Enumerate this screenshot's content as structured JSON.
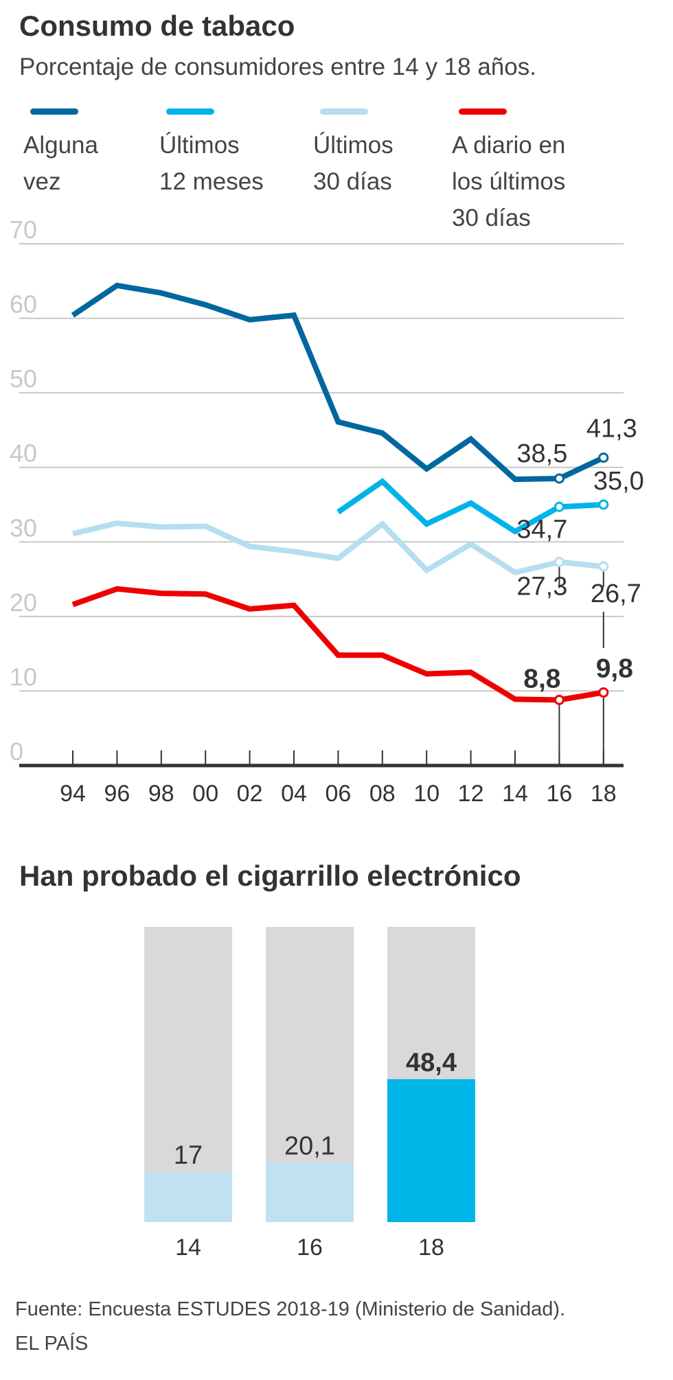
{
  "chart_data": [
    {
      "type": "line",
      "title": "Consumo de tabaco",
      "subtitle": "Porcentaje de consumidores entre 14 y 18 años.",
      "xlabel": "",
      "ylabel": "",
      "ylim": [
        0,
        70
      ],
      "yticks": [
        "0",
        "10",
        "20",
        "30",
        "40",
        "50",
        "60",
        "70"
      ],
      "x": [
        "94",
        "96",
        "98",
        "00",
        "02",
        "04",
        "06",
        "08",
        "10",
        "12",
        "14",
        "16",
        "18"
      ],
      "legend_position": "top",
      "series": [
        {
          "name": "Alguna vez",
          "color": "#00679f",
          "values": [
            60.4,
            64.4,
            63.4,
            61.8,
            59.8,
            60.4,
            46.1,
            44.6,
            39.8,
            43.8,
            38.4,
            38.5,
            41.3
          ],
          "annotations": [
            {
              "x": "16",
              "label": "38,5",
              "bold": false
            },
            {
              "x": "18",
              "label": "41,3",
              "bold": false
            }
          ]
        },
        {
          "name": "Últimos 12 meses",
          "color": "#00b3e8",
          "values": [
            null,
            null,
            null,
            null,
            null,
            null,
            34.0,
            38.1,
            32.4,
            35.2,
            31.4,
            34.7,
            35.0
          ],
          "annotations": [
            {
              "x": "16",
              "label": "34,7",
              "bold": false
            },
            {
              "x": "18",
              "label": "35,0",
              "bold": false
            }
          ]
        },
        {
          "name": "Últimos 30 días",
          "color": "#b5def0",
          "values": [
            31.1,
            32.5,
            32.0,
            32.1,
            29.4,
            28.7,
            27.8,
            32.4,
            26.2,
            29.7,
            25.9,
            27.3,
            26.7
          ],
          "annotations": [
            {
              "x": "16",
              "label": "27,3",
              "bold": false
            },
            {
              "x": "18",
              "label": "26,7",
              "bold": false
            }
          ]
        },
        {
          "name": "A diario en los últimos 30 días",
          "color": "#ee0000",
          "values": [
            21.6,
            23.7,
            23.1,
            23.0,
            21.0,
            21.5,
            14.8,
            14.8,
            12.3,
            12.5,
            8.9,
            8.8,
            9.8
          ],
          "annotations": [
            {
              "x": "16",
              "label": "8,8",
              "bold": true
            },
            {
              "x": "18",
              "label": "9,8",
              "bold": true
            }
          ]
        }
      ]
    },
    {
      "type": "bar",
      "title": "Han probado el cigarrillo electrónico",
      "categories": [
        "14",
        "16",
        "18"
      ],
      "values": [
        17,
        20.1,
        48.4
      ],
      "labels": [
        "17",
        "20,1",
        "48,4"
      ],
      "highlight": [
        false,
        false,
        true
      ],
      "ylim": [
        0,
        100
      ],
      "colors": {
        "background": "#d9d9d9",
        "normal": "#c0e1f0",
        "highlight": "#00b5e8"
      }
    }
  ],
  "legend": [
    {
      "label": "Alguna\nvez",
      "color": "#00679f"
    },
    {
      "label": "Últimos\n12 meses",
      "color": "#00b3e8"
    },
    {
      "label": "Últimos\n30 días",
      "color": "#b5def0"
    },
    {
      "label": "A diario en\nlos últimos\n30 días",
      "color": "#ee0000"
    }
  ],
  "source": {
    "line1": "Fuente: Encuesta ESTUDES 2018-19 (Ministerio de Sanidad).",
    "line2": "EL PAÍS"
  }
}
